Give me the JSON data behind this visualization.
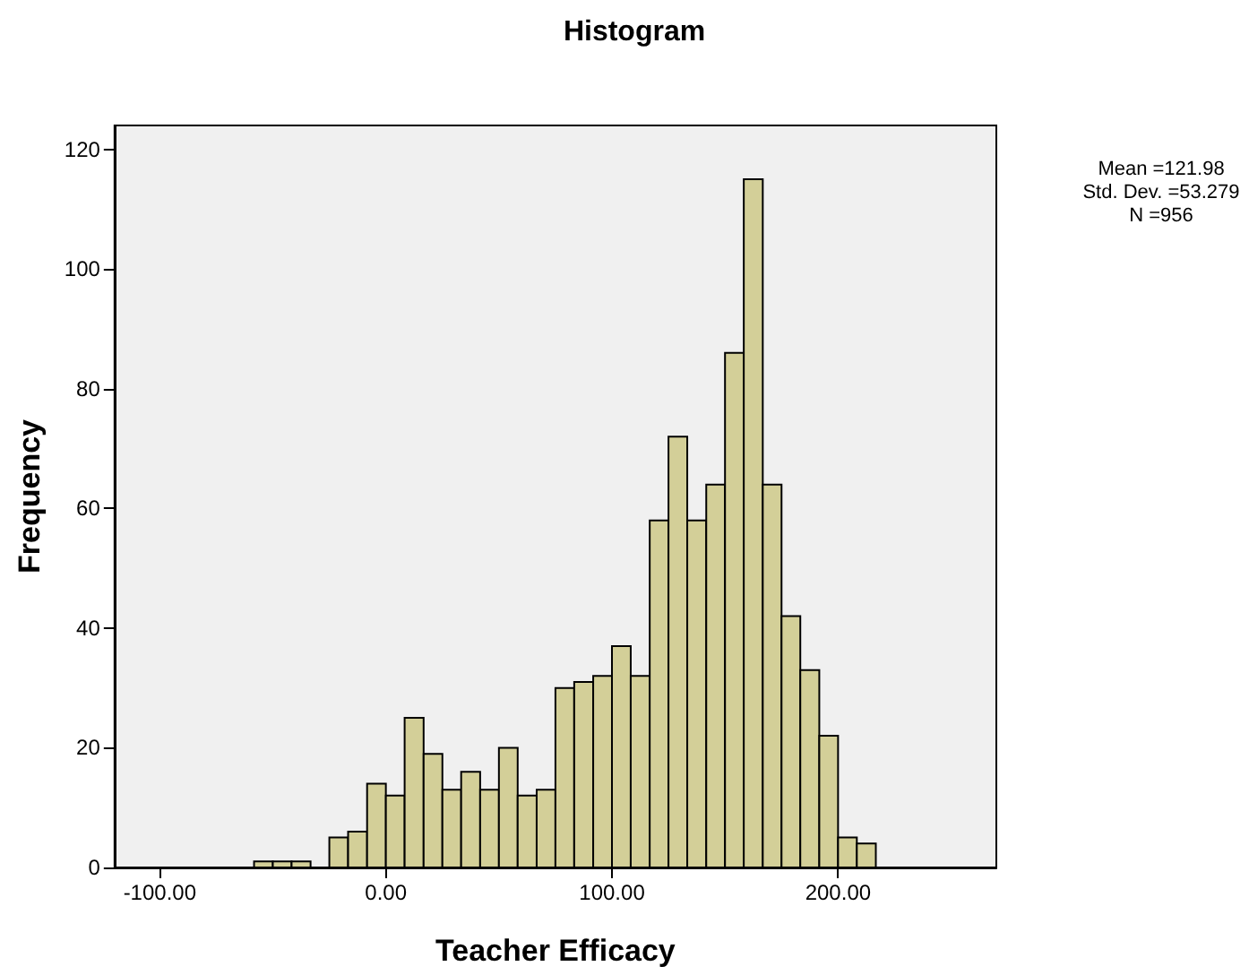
{
  "chart_data": {
    "type": "histogram",
    "title": "Histogram",
    "xlabel": "Teacher Efficacy",
    "ylabel": "Frequency",
    "annotations": [
      "Mean =121.98",
      "Std. Dev. =53.279",
      "N =956"
    ],
    "bins": [
      -58.3,
      -50,
      -41.7,
      -33.3,
      -25,
      -16.7,
      -8.3,
      0,
      8.3,
      16.7,
      25,
      33.3,
      41.7,
      50,
      58.3,
      66.7,
      75,
      83.3,
      91.7,
      100,
      108.3,
      116.7,
      125,
      133.3,
      141.7,
      150,
      158.3,
      166.7,
      175,
      183.3,
      191.7,
      200,
      208.3,
      216.7
    ],
    "values": [
      1,
      1,
      1,
      0,
      5,
      6,
      14,
      12,
      25,
      19,
      13,
      16,
      13,
      20,
      12,
      13,
      30,
      31,
      32,
      37,
      32,
      58,
      72,
      58,
      64,
      86,
      115,
      64,
      42,
      33,
      22,
      5,
      4
    ],
    "color": "#d3cf98",
    "xlim": [
      -120,
      270
    ],
    "xticks": [
      {
        "value": -100,
        "label": "-100.00"
      },
      {
        "value": 0,
        "label": "0.00"
      },
      {
        "value": 100,
        "label": "100.00"
      },
      {
        "value": 200,
        "label": "200.00"
      }
    ],
    "ylim": [
      0,
      124
    ],
    "yticks": [
      0,
      20,
      40,
      60,
      80,
      100,
      120
    ],
    "grid": false
  }
}
